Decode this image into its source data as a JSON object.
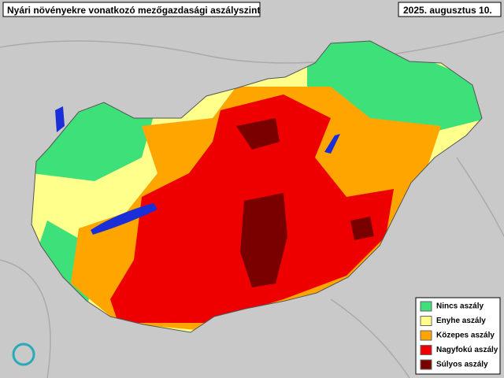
{
  "header": {
    "title": "Nyári növényekre vonatkozó mezőgazdasági aszályszint",
    "date": "2025. augusztus 10."
  },
  "legend": {
    "items": [
      {
        "label": "Nincs aszály",
        "color": "#3ee07a"
      },
      {
        "label": "Enyhe aszály",
        "color": "#ffff8c"
      },
      {
        "label": "Közepes aszály",
        "color": "#ffa500"
      },
      {
        "label": "Nagyfokú aszály",
        "color": "#ee0000"
      },
      {
        "label": "Súlyos aszály",
        "color": "#7a0000"
      }
    ]
  }
}
